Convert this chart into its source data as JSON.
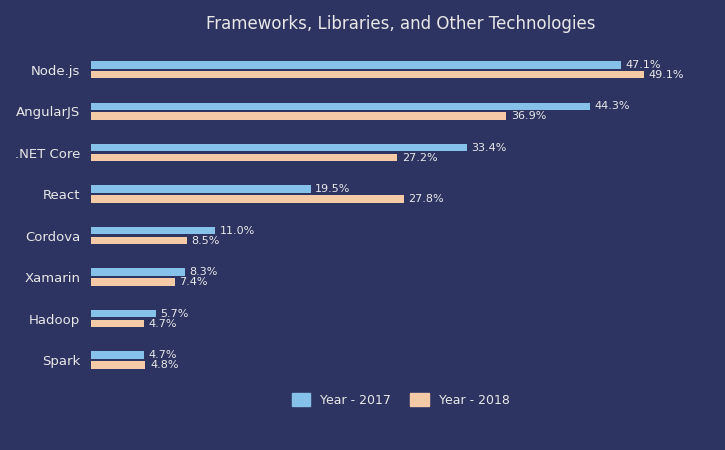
{
  "title": "Frameworks, Libraries, and Other Technologies",
  "categories": [
    "Node.js",
    "AngularJS",
    ".NET Core",
    "React",
    "Cordova",
    "Xamarin",
    "Hadoop",
    "Spark"
  ],
  "values_2017": [
    47.1,
    44.3,
    33.4,
    19.5,
    11.0,
    8.3,
    5.7,
    4.7
  ],
  "values_2018": [
    49.1,
    36.9,
    27.2,
    27.8,
    8.5,
    7.4,
    4.7,
    4.8
  ],
  "color_2017": "#85C1E9",
  "color_2018": "#F5CBA7",
  "bg_color": "#2e3461",
  "text_color": "#e8e8e8",
  "title_fontsize": 12,
  "bar_label_fontsize": 8,
  "legend_labels": [
    "Year - 2017",
    "Year - 2018"
  ],
  "bar_height": 0.18,
  "bar_gap": 0.06,
  "xlim": [
    0,
    55
  ]
}
